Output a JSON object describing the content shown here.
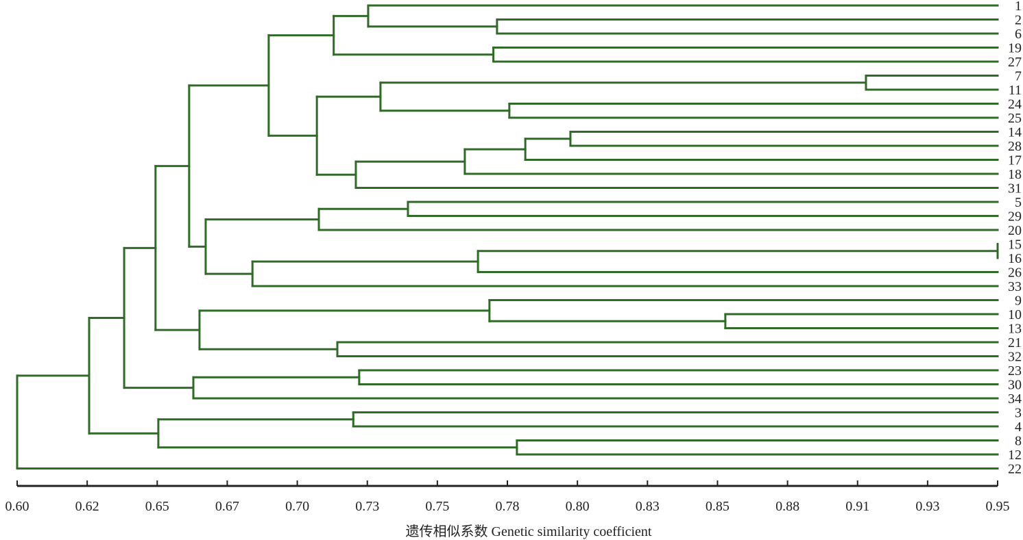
{
  "chart_data": {
    "type": "dendrogram",
    "xlabel": "遗传相似系数 Genetic similarity coefficient",
    "xlim": [
      0.6,
      0.95
    ],
    "x_ticks": [
      "0.60",
      "0.62",
      "0.65",
      "0.67",
      "0.70",
      "0.73",
      "0.75",
      "0.78",
      "0.80",
      "0.83",
      "0.85",
      "0.88",
      "0.91",
      "0.93",
      "0.95"
    ],
    "leaf_order": [
      "1",
      "2",
      "6",
      "19",
      "27",
      "7",
      "11",
      "24",
      "25",
      "14",
      "28",
      "17",
      "18",
      "31",
      "5",
      "29",
      "20",
      "15",
      "16",
      "26",
      "33",
      "9",
      "10",
      "13",
      "21",
      "32",
      "23",
      "30",
      "34",
      "3",
      "4",
      "8",
      "12",
      "22"
    ],
    "line_color": "#2f6b27",
    "tree": {
      "h": 0.6,
      "c": [
        {
          "h": 0.6257,
          "c": [
            {
              "h": 0.6382,
              "c": [
                {
                  "h": 0.6494,
                  "c": [
                    {
                      "h": 0.6614,
                      "c": [
                        {
                          "h": 0.6898,
                          "c": [
                            {
                              "h": 0.713,
                              "c": [
                                {
                                  "h": 0.7253,
                                  "c": [
                                    "1",
                                    {
                                      "h": 0.7713,
                                      "c": [
                                        "2",
                                        "6"
                                      ]
                                    }
                                  ]
                                },
                                {
                                  "h": 0.77,
                                  "c": [
                                    "19",
                                    "27"
                                  ]
                                }
                              ]
                            },
                            {
                              "h": 0.707,
                              "c": [
                                {
                                  "h": 0.7297,
                                  "c": [
                                    {
                                      "h": 0.903,
                                      "c": [
                                        "7",
                                        "11"
                                      ]
                                    },
                                    {
                                      "h": 0.7757,
                                      "c": [
                                        "24",
                                        "25"
                                      ]
                                    }
                                  ]
                                },
                                {
                                  "h": 0.7209,
                                  "c": [
                                    {
                                      "h": 0.7598,
                                      "c": [
                                        {
                                          "h": 0.7814,
                                          "c": [
                                            {
                                              "h": 0.7975,
                                              "c": [
                                                "14",
                                                "28"
                                              ]
                                            },
                                            "17"
                                          ]
                                        },
                                        "18"
                                      ]
                                    },
                                    "31"
                                  ]
                                }
                              ]
                            }
                          ]
                        },
                        {
                          "h": 0.6673,
                          "c": [
                            {
                              "h": 0.7077,
                              "c": [
                                {
                                  "h": 0.7395,
                                  "c": [
                                    "5",
                                    "29"
                                  ]
                                },
                                "20"
                              ]
                            },
                            {
                              "h": 0.684,
                              "c": [
                                {
                                  "h": 0.7645,
                                  "c": [
                                    {
                                      "h": 0.95,
                                      "c": [
                                        "15",
                                        "16"
                                      ]
                                    },
                                    "26"
                                  ]
                                },
                                "33"
                              ]
                            }
                          ]
                        }
                      ]
                    },
                    {
                      "h": 0.6651,
                      "c": [
                        {
                          "h": 0.7686,
                          "c": [
                            "9",
                            {
                              "h": 0.8528,
                              "c": [
                                "10",
                                "13"
                              ]
                            }
                          ]
                        },
                        {
                          "h": 0.7143,
                          "c": [
                            "21",
                            "32"
                          ]
                        }
                      ]
                    }
                  ]
                },
                {
                  "h": 0.6629,
                  "c": [
                    {
                      "h": 0.7221,
                      "c": [
                        "23",
                        "30"
                      ]
                    },
                    "34"
                  ]
                }
              ]
            },
            {
              "h": 0.6504,
              "c": [
                {
                  "h": 0.72,
                  "c": [
                    "3",
                    "4"
                  ]
                },
                {
                  "h": 0.7784,
                  "c": [
                    "8",
                    "12"
                  ]
                }
              ]
            }
          ]
        },
        "22"
      ]
    }
  }
}
